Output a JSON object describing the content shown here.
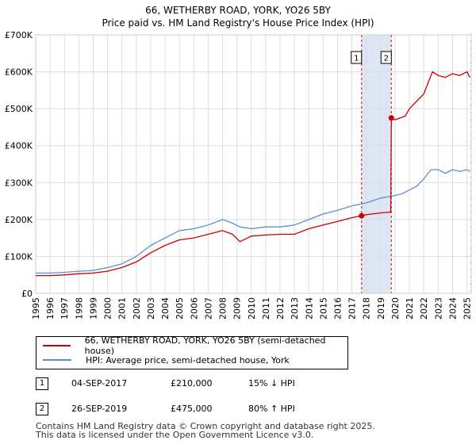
{
  "title": "66, WETHERBY ROAD, YORK, YO26 5BY",
  "subtitle": "Price paid vs. HM Land Registry's House Price Index (HPI)",
  "colors": {
    "property": "#cc0000",
    "hpi": "#5b8fd0",
    "shade": "#dde6f5",
    "marker": "#cc0000"
  },
  "chart_data": {
    "type": "line",
    "title": "66, WETHERBY ROAD, YORK, YO26 5BY",
    "subtitle": "Price paid vs. HM Land Registry's House Price Index (HPI)",
    "xlabel": "",
    "ylabel": "",
    "xlim": [
      1995,
      2025.3
    ],
    "ylim": [
      0,
      700000
    ],
    "yticks": [
      0,
      100000,
      200000,
      300000,
      400000,
      500000,
      600000,
      700000
    ],
    "ytick_labels": [
      "£0",
      "£100K",
      "£200K",
      "£300K",
      "£400K",
      "£500K",
      "£600K",
      "£700K"
    ],
    "xticks": [
      1995,
      1996,
      1997,
      1998,
      1999,
      2000,
      2001,
      2002,
      2003,
      2004,
      2005,
      2006,
      2007,
      2008,
      2009,
      2010,
      2011,
      2012,
      2013,
      2014,
      2015,
      2016,
      2017,
      2018,
      2019,
      2020,
      2021,
      2022,
      2023,
      2024,
      2025
    ],
    "grid": true,
    "shaded_region": [
      2017.67,
      2019.74
    ],
    "series": [
      {
        "name": "66, WETHERBY ROAD, YORK, YO26 5BY (semi-detached house)",
        "x": [
          1995,
          1996,
          1997,
          1998,
          1999,
          2000,
          2001,
          2002,
          2003,
          2004,
          2005,
          2006,
          2007,
          2008,
          2008.7,
          2009.2,
          2010,
          2011,
          2012,
          2013,
          2014,
          2015,
          2016,
          2017,
          2017.67,
          2018,
          2019,
          2019.7,
          2019.74,
          2020,
          2020.7,
          2021,
          2021.5,
          2022,
          2022.3,
          2022.6,
          2023,
          2023.5,
          2024,
          2024.5,
          2025,
          2025.2
        ],
        "values": [
          48000,
          48000,
          50000,
          53000,
          55000,
          60000,
          70000,
          85000,
          110000,
          130000,
          145000,
          150000,
          160000,
          170000,
          160000,
          140000,
          155000,
          158000,
          160000,
          160000,
          175000,
          185000,
          195000,
          205000,
          210000,
          213000,
          218000,
          220000,
          475000,
          470000,
          480000,
          500000,
          520000,
          540000,
          570000,
          600000,
          590000,
          585000,
          595000,
          590000,
          600000,
          585000
        ]
      },
      {
        "name": "HPI: Average price, semi-detached house, York",
        "x": [
          1995,
          1996,
          1997,
          1998,
          1999,
          2000,
          2001,
          2002,
          2003,
          2004,
          2005,
          2006,
          2007,
          2008,
          2008.7,
          2009.2,
          2010,
          2011,
          2012,
          2013,
          2014,
          2015,
          2016,
          2017,
          2018,
          2019,
          2020,
          2020.5,
          2021,
          2021.5,
          2022,
          2022.5,
          2023,
          2023.5,
          2024,
          2024.5,
          2025,
          2025.2
        ],
        "values": [
          55000,
          55000,
          57000,
          60000,
          62000,
          70000,
          80000,
          100000,
          130000,
          150000,
          170000,
          175000,
          185000,
          200000,
          190000,
          180000,
          175000,
          180000,
          180000,
          185000,
          200000,
          215000,
          225000,
          237000,
          245000,
          258000,
          265000,
          270000,
          280000,
          290000,
          310000,
          335000,
          335000,
          325000,
          335000,
          330000,
          335000,
          330000
        ]
      }
    ],
    "transactions": [
      {
        "id": "1",
        "x": 2017.67,
        "value": 210000
      },
      {
        "id": "2",
        "x": 2019.74,
        "value": 475000
      }
    ]
  },
  "legend": {
    "property_label": "66, WETHERBY ROAD, YORK, YO26 5BY (semi-detached house)",
    "hpi_label": "HPI: Average price, semi-detached house, York"
  },
  "transactions_table": [
    {
      "id": "1",
      "date": "04-SEP-2017",
      "price": "£210,000",
      "hpi_change": "15% ↓ HPI"
    },
    {
      "id": "2",
      "date": "26-SEP-2019",
      "price": "£475,000",
      "hpi_change": "80% ↑ HPI"
    }
  ],
  "footer": {
    "line1": "Contains HM Land Registry data © Crown copyright and database right 2025.",
    "line2": "This data is licensed under the Open Government Licence v3.0."
  }
}
